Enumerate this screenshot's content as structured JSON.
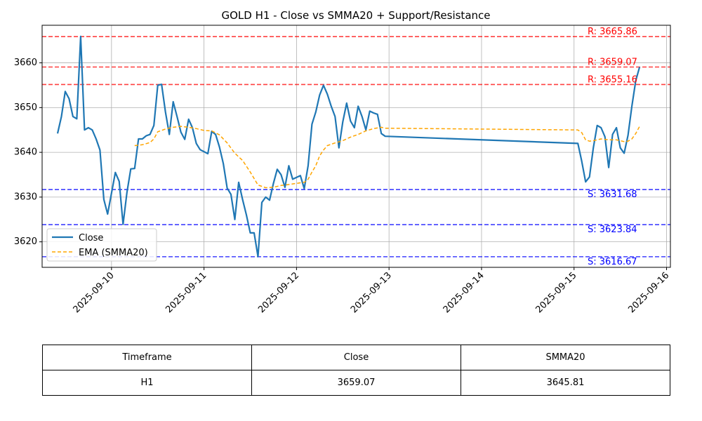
{
  "chart_data": {
    "type": "line",
    "title": "GOLD H1 - Close vs SMMA20 + Support/Resistance",
    "ylim": [
      3614.3,
      3668.4
    ],
    "xlim": [
      "2025-09-09 06:00",
      "2025-09-16 01:00"
    ],
    "x_tick_labels": [
      "2025-09-10",
      "2025-09-11",
      "2025-09-12",
      "2025-09-13",
      "2025-09-14",
      "2025-09-15",
      "2025-09-16"
    ],
    "y_tick_labels": [
      "3620",
      "3630",
      "3640",
      "3650",
      "3660"
    ],
    "y_ticks": [
      3620,
      3630,
      3640,
      3650,
      3660
    ],
    "grid": true,
    "legend_placement": "lower-left",
    "series": [
      {
        "name": "Close",
        "color": "#1f77b4",
        "style": "solid",
        "points": [
          [
            "2025-09-09 10:00",
            3644.2
          ],
          [
            "2025-09-09 11:00",
            3648.0
          ],
          [
            "2025-09-09 12:00",
            3653.6
          ],
          [
            "2025-09-09 13:00",
            3652.0
          ],
          [
            "2025-09-09 14:00",
            3648.0
          ],
          [
            "2025-09-09 15:00",
            3647.5
          ],
          [
            "2025-09-09 16:00",
            3665.9
          ],
          [
            "2025-09-09 17:00",
            3645.0
          ],
          [
            "2025-09-09 18:00",
            3645.5
          ],
          [
            "2025-09-09 19:00",
            3645.0
          ],
          [
            "2025-09-09 20:00",
            3643.0
          ],
          [
            "2025-09-09 21:00",
            3640.5
          ],
          [
            "2025-09-09 22:00",
            3629.5
          ],
          [
            "2025-09-09 23:00",
            3626.2
          ],
          [
            "2025-09-10 01:00",
            3635.5
          ],
          [
            "2025-09-10 02:00",
            3633.5
          ],
          [
            "2025-09-10 03:00",
            3623.9
          ],
          [
            "2025-09-10 04:00",
            3631.0
          ],
          [
            "2025-09-10 05:00",
            3636.3
          ],
          [
            "2025-09-10 06:00",
            3636.4
          ],
          [
            "2025-09-10 07:00",
            3643.0
          ],
          [
            "2025-09-10 08:00",
            3643.0
          ],
          [
            "2025-09-10 09:00",
            3643.7
          ],
          [
            "2025-09-10 10:00",
            3644.0
          ],
          [
            "2025-09-10 11:00",
            3646.0
          ],
          [
            "2025-09-10 12:00",
            3655.0
          ],
          [
            "2025-09-10 13:00",
            3655.2
          ],
          [
            "2025-09-10 14:00",
            3649.0
          ],
          [
            "2025-09-10 15:00",
            3644.0
          ],
          [
            "2025-09-10 16:00",
            3651.3
          ],
          [
            "2025-09-10 17:00",
            3648.0
          ],
          [
            "2025-09-10 18:00",
            3644.5
          ],
          [
            "2025-09-10 19:00",
            3642.9
          ],
          [
            "2025-09-10 20:00",
            3647.4
          ],
          [
            "2025-09-10 21:00",
            3645.5
          ],
          [
            "2025-09-10 22:00",
            3642.0
          ],
          [
            "2025-09-10 23:00",
            3640.6
          ],
          [
            "2025-09-11 01:00",
            3639.7
          ],
          [
            "2025-09-11 02:00",
            3644.7
          ],
          [
            "2025-09-11 03:00",
            3644.0
          ],
          [
            "2025-09-11 04:00",
            3641.2
          ],
          [
            "2025-09-11 05:00",
            3637.5
          ],
          [
            "2025-09-11 06:00",
            3632.0
          ],
          [
            "2025-09-11 07:00",
            3630.6
          ],
          [
            "2025-09-11 08:00",
            3625.0
          ],
          [
            "2025-09-11 09:00",
            3633.3
          ],
          [
            "2025-09-11 10:00",
            3629.5
          ],
          [
            "2025-09-11 11:00",
            3626.0
          ],
          [
            "2025-09-11 12:00",
            3622.0
          ],
          [
            "2025-09-11 13:00",
            3622.0
          ],
          [
            "2025-09-11 14:00",
            3616.7
          ],
          [
            "2025-09-11 15:00",
            3628.8
          ],
          [
            "2025-09-11 16:00",
            3630.0
          ],
          [
            "2025-09-11 17:00",
            3629.3
          ],
          [
            "2025-09-11 18:00",
            3633.0
          ],
          [
            "2025-09-11 19:00",
            3636.2
          ],
          [
            "2025-09-11 20:00",
            3635.0
          ],
          [
            "2025-09-11 21:00",
            3632.2
          ],
          [
            "2025-09-11 22:00",
            3637.0
          ],
          [
            "2025-09-11 23:00",
            3634.0
          ],
          [
            "2025-09-12 01:00",
            3634.8
          ],
          [
            "2025-09-12 02:00",
            3631.9
          ],
          [
            "2025-09-12 03:00",
            3637.0
          ],
          [
            "2025-09-12 04:00",
            3646.3
          ],
          [
            "2025-09-12 05:00",
            3649.0
          ],
          [
            "2025-09-12 06:00",
            3652.8
          ],
          [
            "2025-09-12 07:00",
            3655.0
          ],
          [
            "2025-09-12 08:00",
            3653.0
          ],
          [
            "2025-09-12 09:00",
            3650.3
          ],
          [
            "2025-09-12 10:00",
            3648.0
          ],
          [
            "2025-09-12 11:00",
            3641.0
          ],
          [
            "2025-09-12 12:00",
            3646.8
          ],
          [
            "2025-09-12 13:00",
            3651.0
          ],
          [
            "2025-09-12 14:00",
            3647.0
          ],
          [
            "2025-09-12 15:00",
            3645.5
          ],
          [
            "2025-09-12 16:00",
            3650.3
          ],
          [
            "2025-09-12 17:00",
            3648.0
          ],
          [
            "2025-09-12 18:00",
            3645.0
          ],
          [
            "2025-09-12 19:00",
            3649.2
          ],
          [
            "2025-09-12 20:00",
            3648.8
          ],
          [
            "2025-09-12 21:00",
            3648.5
          ],
          [
            "2025-09-12 22:00",
            3644.2
          ],
          [
            "2025-09-12 23:00",
            3643.6
          ],
          [
            "2025-09-15 01:00",
            3642.0
          ],
          [
            "2025-09-15 02:00",
            3638.0
          ],
          [
            "2025-09-15 03:00",
            3633.4
          ],
          [
            "2025-09-15 04:00",
            3634.5
          ],
          [
            "2025-09-15 05:00",
            3641.0
          ],
          [
            "2025-09-15 06:00",
            3646.0
          ],
          [
            "2025-09-15 07:00",
            3645.5
          ],
          [
            "2025-09-15 08:00",
            3643.5
          ],
          [
            "2025-09-15 09:00",
            3636.6
          ],
          [
            "2025-09-15 10:00",
            3644.0
          ],
          [
            "2025-09-15 11:00",
            3645.5
          ],
          [
            "2025-09-15 12:00",
            3641.0
          ],
          [
            "2025-09-15 13:00",
            3639.8
          ],
          [
            "2025-09-15 14:00",
            3643.8
          ],
          [
            "2025-09-15 15:00",
            3650.3
          ],
          [
            "2025-09-15 16:00",
            3656.0
          ],
          [
            "2025-09-15 17:00",
            3659.07
          ]
        ]
      },
      {
        "name": "EMA (SMMA20)",
        "color": "#ffa500",
        "style": "dashed",
        "points": [
          [
            "2025-09-10 06:00",
            3641.5
          ],
          [
            "2025-09-10 08:00",
            3641.7
          ],
          [
            "2025-09-10 10:00",
            3642.2
          ],
          [
            "2025-09-10 11:00",
            3643.0
          ],
          [
            "2025-09-10 12:00",
            3644.6
          ],
          [
            "2025-09-10 14:00",
            3645.2
          ],
          [
            "2025-09-10 16:00",
            3645.6
          ],
          [
            "2025-09-10 18:00",
            3645.8
          ],
          [
            "2025-09-10 20:00",
            3645.6
          ],
          [
            "2025-09-10 22:00",
            3645.3
          ],
          [
            "2025-09-11 00:00",
            3644.9
          ],
          [
            "2025-09-11 02:00",
            3644.8
          ],
          [
            "2025-09-11 04:00",
            3643.9
          ],
          [
            "2025-09-11 06:00",
            3642.1
          ],
          [
            "2025-09-11 08:00",
            3639.8
          ],
          [
            "2025-09-11 10:00",
            3638.2
          ],
          [
            "2025-09-11 12:00",
            3635.6
          ],
          [
            "2025-09-11 14:00",
            3632.7
          ],
          [
            "2025-09-11 16:00",
            3632.1
          ],
          [
            "2025-09-11 18:00",
            3632.2
          ],
          [
            "2025-09-11 20:00",
            3632.6
          ],
          [
            "2025-09-11 22:00",
            3632.8
          ],
          [
            "2025-09-12 01:00",
            3633.2
          ],
          [
            "2025-09-12 02:00",
            3633.3
          ],
          [
            "2025-09-12 03:00",
            3634.0
          ],
          [
            "2025-09-12 04:00",
            3635.6
          ],
          [
            "2025-09-12 05:00",
            3637.0
          ],
          [
            "2025-09-12 06:00",
            3639.2
          ],
          [
            "2025-09-12 07:00",
            3640.5
          ],
          [
            "2025-09-12 08:00",
            3641.5
          ],
          [
            "2025-09-12 10:00",
            3642.1
          ],
          [
            "2025-09-12 12:00",
            3642.6
          ],
          [
            "2025-09-12 14:00",
            3643.4
          ],
          [
            "2025-09-12 16:00",
            3644.0
          ],
          [
            "2025-09-12 18:00",
            3644.8
          ],
          [
            "2025-09-12 20:00",
            3645.3
          ],
          [
            "2025-09-12 22:00",
            3645.6
          ],
          [
            "2025-09-12 23:00",
            3645.4
          ],
          [
            "2025-09-15 01:00",
            3645.0
          ],
          [
            "2025-09-15 02:00",
            3644.4
          ],
          [
            "2025-09-15 03:00",
            3642.8
          ],
          [
            "2025-09-15 04:00",
            3642.5
          ],
          [
            "2025-09-15 05:00",
            3642.6
          ],
          [
            "2025-09-15 07:00",
            3643.0
          ],
          [
            "2025-09-15 09:00",
            3642.8
          ],
          [
            "2025-09-15 11:00",
            3642.8
          ],
          [
            "2025-09-15 13:00",
            3642.4
          ],
          [
            "2025-09-15 14:00",
            3642.5
          ],
          [
            "2025-09-15 15:00",
            3643.0
          ],
          [
            "2025-09-15 16:00",
            3644.2
          ],
          [
            "2025-09-15 17:00",
            3645.8
          ]
        ]
      }
    ],
    "levels": [
      {
        "kind": "resistance",
        "value": 3665.86,
        "label": "R: 3665.86",
        "color": "#ff0000"
      },
      {
        "kind": "resistance",
        "value": 3659.07,
        "label": "R: 3659.07",
        "color": "#ff0000"
      },
      {
        "kind": "resistance",
        "value": 3655.16,
        "label": "R: 3655.16",
        "color": "#ff0000"
      },
      {
        "kind": "support",
        "value": 3631.68,
        "label": "S: 3631.68",
        "color": "#0000ff"
      },
      {
        "kind": "support",
        "value": 3623.84,
        "label": "S: 3623.84",
        "color": "#0000ff"
      },
      {
        "kind": "support",
        "value": 3616.67,
        "label": "S: 3616.67",
        "color": "#0000ff"
      }
    ]
  },
  "summary_table": {
    "headers": [
      "Timeframe",
      "Close",
      "SMMA20"
    ],
    "rows": [
      [
        "H1",
        "3659.07",
        "3645.81"
      ]
    ]
  }
}
